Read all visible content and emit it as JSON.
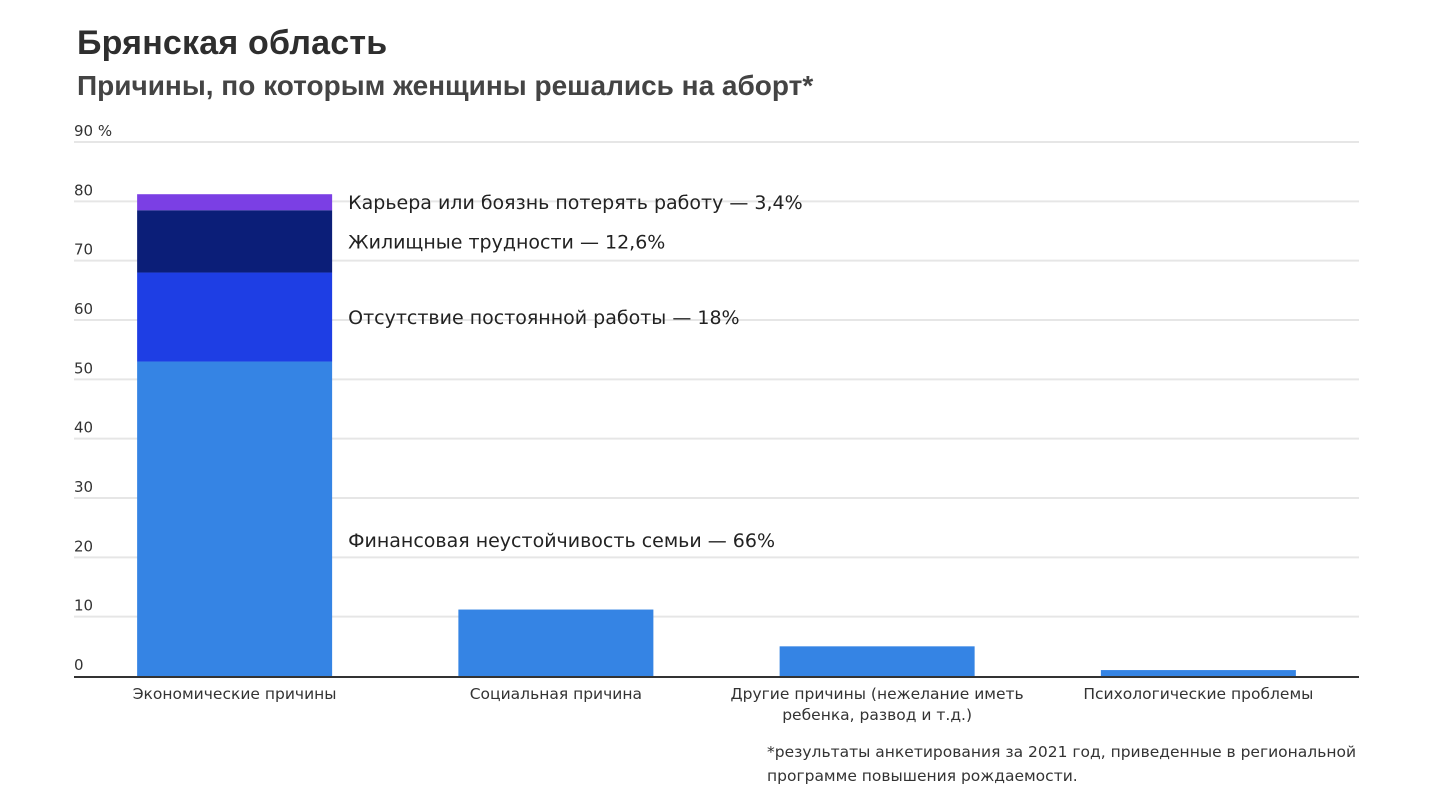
{
  "title": "Брянская область",
  "subtitle": "Причины, по которым женщины решались на аборт*",
  "footnote": "*результаты анкетирования за 2021 год, приведенные в региональной программе повышения рождаемости.",
  "chart_data": {
    "type": "bar",
    "stacked": true,
    "ylim": [
      0,
      90
    ],
    "y_ticks": [
      {
        "value": 0,
        "label": "0"
      },
      {
        "value": 10,
        "label": "10"
      },
      {
        "value": 20,
        "label": "20"
      },
      {
        "value": 30,
        "label": "30"
      },
      {
        "value": 40,
        "label": "40"
      },
      {
        "value": 50,
        "label": "50"
      },
      {
        "value": 60,
        "label": "60"
      },
      {
        "value": 70,
        "label": "70"
      },
      {
        "value": 80,
        "label": "80"
      },
      {
        "value": 90,
        "label": "90 %"
      }
    ],
    "grid": true,
    "categories": [
      [
        "Экономические причины"
      ],
      [
        "Социальная причина"
      ],
      [
        "Другие причины (нежелание иметь",
        "ребенка, развод и т.д.)"
      ],
      [
        "Психологические проблемы"
      ]
    ],
    "bars": [
      {
        "segments": [
          {
            "value": 53,
            "color": "#3584e4",
            "label": "Финансовая неустойчивость семьи — 66%"
          },
          {
            "value": 15,
            "color": "#1e3ee4",
            "label": "Отсутствие постоянной работы — 18%"
          },
          {
            "value": 10.5,
            "color": "#0b1e78",
            "label": "Жилищные трудности — 12,6%"
          },
          {
            "value": 2.7,
            "color": "#7b3fe4",
            "label": "Карьера или боязнь потерять работу — 3,4%"
          }
        ]
      },
      {
        "segments": [
          {
            "value": 11.2,
            "color": "#3584e4"
          }
        ]
      },
      {
        "segments": [
          {
            "value": 5,
            "color": "#3584e4"
          }
        ]
      },
      {
        "segments": [
          {
            "value": 1,
            "color": "#3584e4"
          }
        ]
      }
    ],
    "colors": {
      "grid": "#e6e6e6",
      "axis": "#333333"
    }
  }
}
